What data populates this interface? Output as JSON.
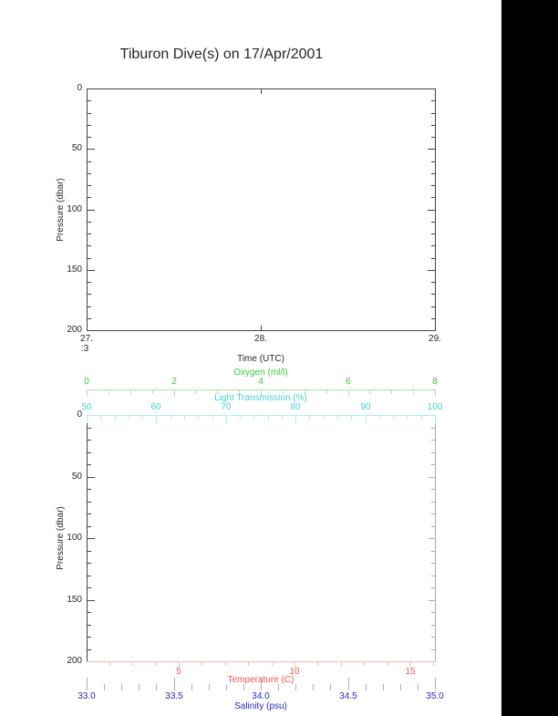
{
  "page": {
    "title": "Tiburon Dive(s) on 17/Apr/2001",
    "background": "#ffffff",
    "right_bar_color": "#000000"
  },
  "chart_data": [
    {
      "type": "line",
      "title": "Tiburon Dive(s) on 17/Apr/2001",
      "xlabel": "Time (UTC)",
      "ylabel": "Pressure (dbar)",
      "xlim": [
        27,
        29
      ],
      "ylim": [
        0,
        200
      ],
      "y_inverted": true,
      "grid": false,
      "frame_color": "#444444",
      "text_color": "#262626",
      "x_ticks": {
        "values": [
          27,
          28,
          29
        ],
        "labels": [
          "27.",
          "28.",
          "29."
        ],
        "sub_label": ":3",
        "sub_label_tick": 27
      },
      "y_ticks": {
        "values": [
          0,
          50,
          100,
          150,
          200
        ],
        "labels": [
          "0",
          "50",
          "100",
          "150",
          "200"
        ],
        "minor_step": 10
      },
      "series": []
    },
    {
      "type": "line",
      "ylabel": "Pressure (dbar)",
      "ylim": [
        0,
        200
      ],
      "y_inverted": true,
      "grid": false,
      "frame_color": "#444444",
      "text_color": "#262626",
      "right_axis_color": "#aaaaaa",
      "y_ticks": {
        "values": [
          0,
          50,
          100,
          150,
          200
        ],
        "labels": [
          "0",
          "50",
          "100",
          "150",
          "200"
        ],
        "minor_step": 10
      },
      "series": [],
      "x_axes": [
        {
          "id": "oxygen",
          "label": "Oxygen (ml/l)",
          "lim": [
            0,
            8
          ],
          "majors": [
            0,
            2,
            4,
            6,
            8
          ],
          "labels": [
            "0",
            "2",
            "4",
            "6",
            "8"
          ],
          "minor_step": 0.5,
          "text_color": "#3cc83c",
          "line_color": "#a8e6a8"
        },
        {
          "id": "light-transmission",
          "label": "Light Transmission (%)",
          "lim": [
            50,
            100
          ],
          "majors": [
            50,
            60,
            70,
            80,
            90,
            100
          ],
          "labels": [
            "50",
            "60",
            "70",
            "80",
            "90",
            "100"
          ],
          "minor_step": 2,
          "text_color": "#46d2d2",
          "line_color": "#aeeeee"
        },
        {
          "id": "temperature",
          "label": "Temperature (C)",
          "lim": [
            1.02,
            16.06
          ],
          "majors": [
            5,
            10,
            15
          ],
          "labels": [
            "5",
            "10",
            "15"
          ],
          "minor_step": 1,
          "text_color": "#ff5050",
          "line_color": "#ffb4b4"
        },
        {
          "id": "salinity",
          "label": "Salinity (psu)",
          "lim": [
            33.0,
            35.0
          ],
          "majors": [
            33.0,
            33.5,
            34.0,
            34.5,
            35.0
          ],
          "labels": [
            "33.0",
            "33.5",
            "34.0",
            "34.5",
            "35.0"
          ],
          "minor_step": 0.1,
          "text_color": "#2828d2",
          "line_color": "#a8a8ec"
        }
      ]
    }
  ]
}
